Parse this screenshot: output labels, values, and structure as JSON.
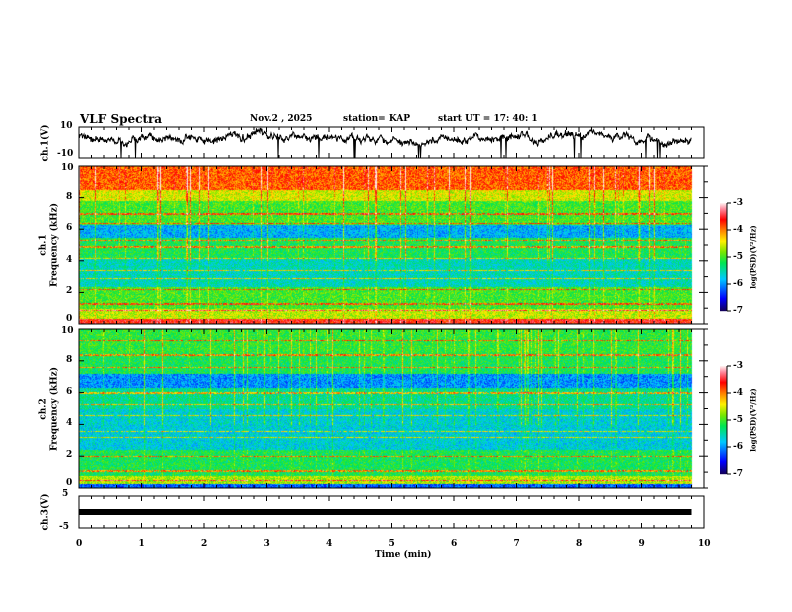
{
  "header": {
    "title": "VLF Spectra",
    "date": "Nov.2 , 2025",
    "station": "station= KAP",
    "start": "start  UT =   17: 40: 1"
  },
  "chart_data": [
    {
      "type": "line",
      "name": "ch1",
      "ylabel": "ch.1(V)",
      "ylim": [
        -10,
        10
      ],
      "yticks": [
        "10",
        "-10"
      ],
      "xlim": [
        0,
        10
      ],
      "data_end": 9.8,
      "mean": 3,
      "spread": 3
    },
    {
      "type": "heatmap",
      "name": "ch1-spectrogram",
      "ylabel_top": "ch.1",
      "ylabel": "Frequency (kHz)",
      "ylim": [
        0,
        10
      ],
      "yticks": [
        "0",
        "2",
        "4",
        "6",
        "8",
        "10"
      ],
      "xlim": [
        0,
        10
      ],
      "data_end": 9.8,
      "colorbar": {
        "label": "log(PSD)(V²/Hz)",
        "range": [
          -7,
          -3
        ],
        "ticks": [
          "-3",
          "-4",
          "-5",
          "-6",
          "-7"
        ]
      }
    },
    {
      "type": "heatmap",
      "name": "ch2-spectrogram",
      "ylabel_top": "ch.2",
      "ylabel": "Frequency (kHz)",
      "ylim": [
        0,
        10
      ],
      "yticks": [
        "0",
        "2",
        "4",
        "6",
        "8",
        "10"
      ],
      "xlim": [
        0,
        10
      ],
      "data_end": 9.8,
      "colorbar": {
        "label": "log(PSD)(V²/Hz)",
        "range": [
          -7,
          -3
        ],
        "ticks": [
          "-3",
          "-4",
          "-5",
          "-6",
          "-7"
        ]
      }
    },
    {
      "type": "line",
      "name": "ch3",
      "ylabel": "ch.3(V)",
      "ylim": [
        -5,
        5
      ],
      "yticks": [
        "5",
        "-5"
      ],
      "xlim": [
        0,
        10
      ],
      "value": 0,
      "data_end": 9.8
    }
  ],
  "xaxis": {
    "label": "Time (min)",
    "ticks": [
      "0",
      "1",
      "2",
      "3",
      "4",
      "5",
      "6",
      "7",
      "8",
      "9",
      "10"
    ]
  }
}
